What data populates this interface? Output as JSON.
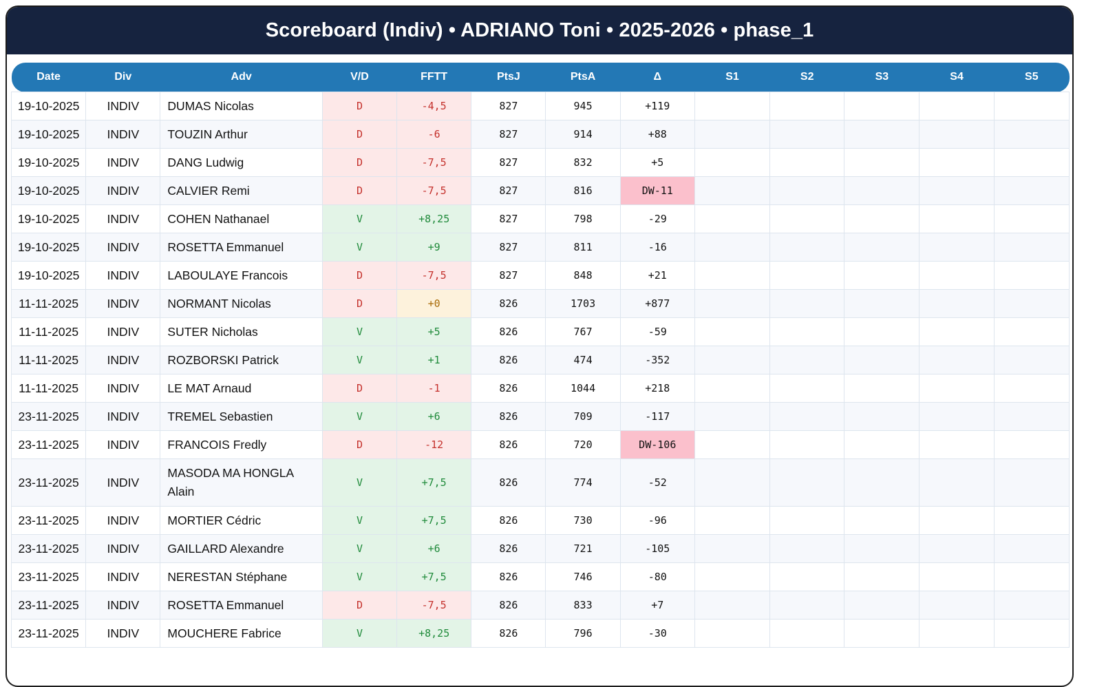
{
  "header": {
    "title": "Scoreboard (Indiv) • ADRIANO Toni • 2025-2026 • phase_1"
  },
  "colors": {
    "title_bg": "#16233f",
    "header_bg": "#2378b5",
    "loss_bg": "#fde8e8",
    "loss_text": "#c4302b",
    "win_bg": "#e3f4e7",
    "win_text": "#1f8a3a",
    "neutral_bg": "#fdf2dc",
    "neutral_text": "#a86a06",
    "dw_bg": "#fbc0cc"
  },
  "table": {
    "columns": [
      "Date",
      "Div",
      "Adv",
      "V/D",
      "FFTT",
      "PtsJ",
      "PtsA",
      "Δ",
      "S1",
      "S2",
      "S3",
      "S4",
      "S5"
    ],
    "rows": [
      {
        "date": "19-10-2025",
        "div": "INDIV",
        "adv": "DUMAS Nicolas",
        "vd": "D",
        "fftt": "-4,5",
        "ptsj": "827",
        "ptsa": "945",
        "delta": "+119",
        "s1": "",
        "s2": "",
        "s3": "",
        "s4": "",
        "s5": ""
      },
      {
        "date": "19-10-2025",
        "div": "INDIV",
        "adv": "TOUZIN Arthur",
        "vd": "D",
        "fftt": "-6",
        "ptsj": "827",
        "ptsa": "914",
        "delta": "+88",
        "s1": "",
        "s2": "",
        "s3": "",
        "s4": "",
        "s5": ""
      },
      {
        "date": "19-10-2025",
        "div": "INDIV",
        "adv": "DANG Ludwig",
        "vd": "D",
        "fftt": "-7,5",
        "ptsj": "827",
        "ptsa": "832",
        "delta": "+5",
        "s1": "",
        "s2": "",
        "s3": "",
        "s4": "",
        "s5": ""
      },
      {
        "date": "19-10-2025",
        "div": "INDIV",
        "adv": "CALVIER Remi",
        "vd": "D",
        "fftt": "-7,5",
        "ptsj": "827",
        "ptsa": "816",
        "delta": "DW-11",
        "s1": "",
        "s2": "",
        "s3": "",
        "s4": "",
        "s5": ""
      },
      {
        "date": "19-10-2025",
        "div": "INDIV",
        "adv": "COHEN Nathanael",
        "vd": "V",
        "fftt": "+8,25",
        "ptsj": "827",
        "ptsa": "798",
        "delta": "-29",
        "s1": "",
        "s2": "",
        "s3": "",
        "s4": "",
        "s5": ""
      },
      {
        "date": "19-10-2025",
        "div": "INDIV",
        "adv": "ROSETTA Emmanuel",
        "vd": "V",
        "fftt": "+9",
        "ptsj": "827",
        "ptsa": "811",
        "delta": "-16",
        "s1": "",
        "s2": "",
        "s3": "",
        "s4": "",
        "s5": ""
      },
      {
        "date": "19-10-2025",
        "div": "INDIV",
        "adv": "LABOULAYE Francois",
        "vd": "D",
        "fftt": "-7,5",
        "ptsj": "827",
        "ptsa": "848",
        "delta": "+21",
        "s1": "",
        "s2": "",
        "s3": "",
        "s4": "",
        "s5": ""
      },
      {
        "date": "11-11-2025",
        "div": "INDIV",
        "adv": "NORMANT Nicolas",
        "vd": "D",
        "fftt": "+0",
        "ptsj": "826",
        "ptsa": "1703",
        "delta": "+877",
        "s1": "",
        "s2": "",
        "s3": "",
        "s4": "",
        "s5": ""
      },
      {
        "date": "11-11-2025",
        "div": "INDIV",
        "adv": "SUTER Nicholas",
        "vd": "V",
        "fftt": "+5",
        "ptsj": "826",
        "ptsa": "767",
        "delta": "-59",
        "s1": "",
        "s2": "",
        "s3": "",
        "s4": "",
        "s5": ""
      },
      {
        "date": "11-11-2025",
        "div": "INDIV",
        "adv": "ROZBORSKI Patrick",
        "vd": "V",
        "fftt": "+1",
        "ptsj": "826",
        "ptsa": "474",
        "delta": "-352",
        "s1": "",
        "s2": "",
        "s3": "",
        "s4": "",
        "s5": ""
      },
      {
        "date": "11-11-2025",
        "div": "INDIV",
        "adv": "LE MAT Arnaud",
        "vd": "D",
        "fftt": "-1",
        "ptsj": "826",
        "ptsa": "1044",
        "delta": "+218",
        "s1": "",
        "s2": "",
        "s3": "",
        "s4": "",
        "s5": ""
      },
      {
        "date": "23-11-2025",
        "div": "INDIV",
        "adv": "TREMEL Sebastien",
        "vd": "V",
        "fftt": "+6",
        "ptsj": "826",
        "ptsa": "709",
        "delta": "-117",
        "s1": "",
        "s2": "",
        "s3": "",
        "s4": "",
        "s5": ""
      },
      {
        "date": "23-11-2025",
        "div": "INDIV",
        "adv": "FRANCOIS Fredly",
        "vd": "D",
        "fftt": "-12",
        "ptsj": "826",
        "ptsa": "720",
        "delta": "DW-106",
        "s1": "",
        "s2": "",
        "s3": "",
        "s4": "",
        "s5": ""
      },
      {
        "date": "23-11-2025",
        "div": "INDIV",
        "adv": "MASODA MA HONGLA Alain",
        "vd": "V",
        "fftt": "+7,5",
        "ptsj": "826",
        "ptsa": "774",
        "delta": "-52",
        "s1": "",
        "s2": "",
        "s3": "",
        "s4": "",
        "s5": ""
      },
      {
        "date": "23-11-2025",
        "div": "INDIV",
        "adv": "MORTIER Cédric",
        "vd": "V",
        "fftt": "+7,5",
        "ptsj": "826",
        "ptsa": "730",
        "delta": "-96",
        "s1": "",
        "s2": "",
        "s3": "",
        "s4": "",
        "s5": ""
      },
      {
        "date": "23-11-2025",
        "div": "INDIV",
        "adv": "GAILLARD Alexandre",
        "vd": "V",
        "fftt": "+6",
        "ptsj": "826",
        "ptsa": "721",
        "delta": "-105",
        "s1": "",
        "s2": "",
        "s3": "",
        "s4": "",
        "s5": ""
      },
      {
        "date": "23-11-2025",
        "div": "INDIV",
        "adv": "NERESTAN Stéphane",
        "vd": "V",
        "fftt": "+7,5",
        "ptsj": "826",
        "ptsa": "746",
        "delta": "-80",
        "s1": "",
        "s2": "",
        "s3": "",
        "s4": "",
        "s5": ""
      },
      {
        "date": "23-11-2025",
        "div": "INDIV",
        "adv": "ROSETTA Emmanuel",
        "vd": "D",
        "fftt": "-7,5",
        "ptsj": "826",
        "ptsa": "833",
        "delta": "+7",
        "s1": "",
        "s2": "",
        "s3": "",
        "s4": "",
        "s5": ""
      },
      {
        "date": "23-11-2025",
        "div": "INDIV",
        "adv": "MOUCHERE Fabrice",
        "vd": "V",
        "fftt": "+8,25",
        "ptsj": "826",
        "ptsa": "796",
        "delta": "-30",
        "s1": "",
        "s2": "",
        "s3": "",
        "s4": "",
        "s5": ""
      }
    ]
  }
}
